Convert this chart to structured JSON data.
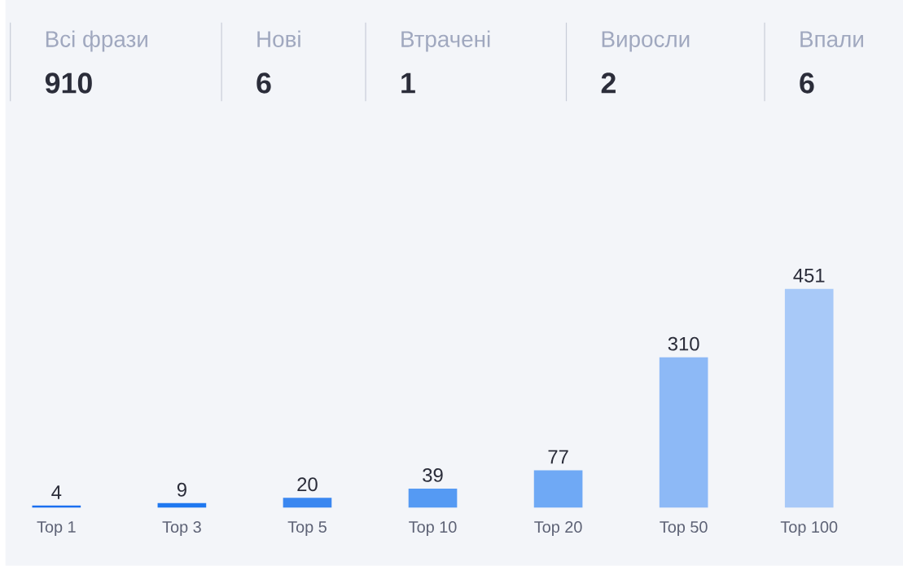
{
  "chart_data": [
    {
      "type": "other",
      "categories": [
        "Всі фрази",
        "Нові",
        "Втрачені",
        "Виросли",
        "Впали"
      ],
      "values": [
        910,
        6,
        1,
        2,
        6
      ],
      "data_labels": true
    },
    {
      "type": "bar",
      "categories": [
        "Top 1",
        "Top 3",
        "Top 5",
        "Top 10",
        "Top 20",
        "Top 50",
        "Top 100"
      ],
      "values": [
        4,
        9,
        20,
        39,
        77,
        310,
        451
      ],
      "colors": [
        "#1a6ff0",
        "#1f78f0",
        "#3a87f0",
        "#559af3",
        "#6fa9f5",
        "#8db9f6",
        "#a8c9f8"
      ],
      "data_labels": true
    }
  ]
}
